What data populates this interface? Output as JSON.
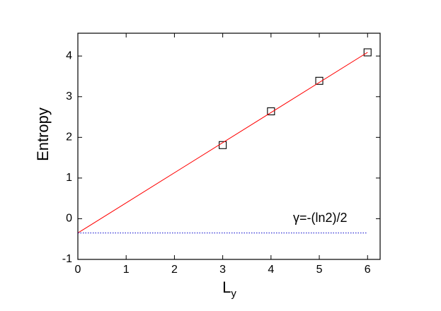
{
  "chart_data": {
    "type": "scatter",
    "x_label": {
      "text": "L",
      "subscript": "y"
    },
    "y_label": "Entropy",
    "xlim": [
      0,
      6.26
    ],
    "ylim": [
      -1,
      4.56
    ],
    "xticks": [
      0,
      1,
      2,
      3,
      4,
      5,
      6
    ],
    "yticks": [
      -1,
      0,
      1,
      2,
      3,
      4
    ],
    "series": [
      {
        "style": "markers",
        "marker": "square",
        "color": "#000000",
        "x": [
          3,
          4,
          5,
          6
        ],
        "values": [
          1.81,
          2.64,
          3.39,
          4.09
        ]
      },
      {
        "style": "line",
        "color": "#ff0000",
        "x": [
          0,
          6
        ],
        "values": [
          -0.35,
          4.09
        ]
      },
      {
        "style": "dotted",
        "color": "#0000cc",
        "x": [
          0,
          6
        ],
        "values": [
          -0.35,
          -0.35
        ]
      }
    ],
    "annotation": {
      "text": "γ=-(ln2)/2",
      "color": "#0000ff"
    }
  }
}
